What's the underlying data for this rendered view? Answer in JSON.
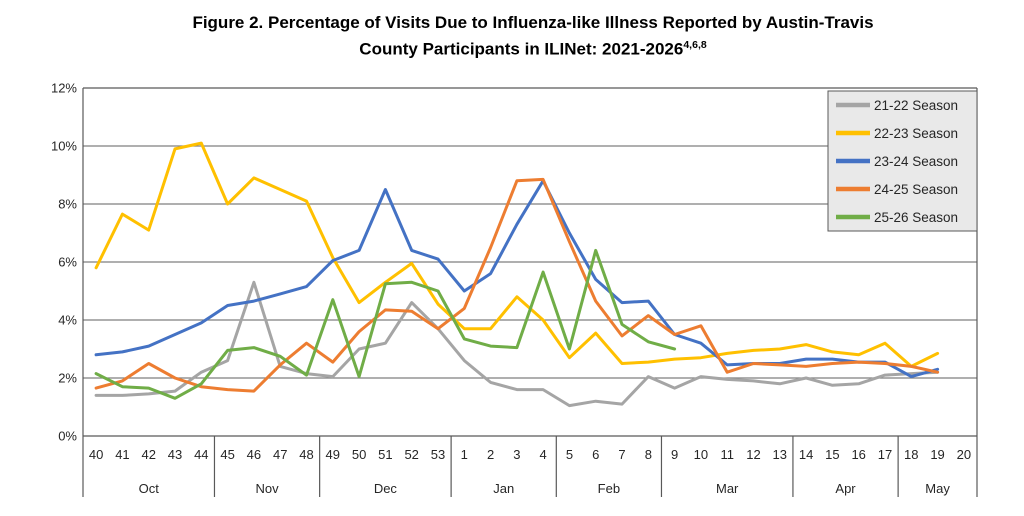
{
  "title": {
    "line1": "Figure 2. Percentage of Visits Due to Influenza-like Illness Reported by Austin-Travis",
    "line2": "County Participants in ILINet: 2021-2026",
    "superscript": "4,6,8"
  },
  "chart_data": {
    "type": "line",
    "title": "Figure 2. Percentage of Visits Due to Influenza-like Illness Reported by Austin-Travis County Participants in ILINet: 2021-2026",
    "grid": true,
    "y_axis": {
      "min": 0,
      "max": 12,
      "tick_interval": 2,
      "format": "percent",
      "tick_labels": [
        "0%",
        "2%",
        "4%",
        "6%",
        "8%",
        "10%",
        "12%"
      ]
    },
    "x_axis": {
      "weeks": [
        "40",
        "41",
        "42",
        "43",
        "44",
        "45",
        "46",
        "47",
        "48",
        "49",
        "50",
        "51",
        "52",
        "53",
        "1",
        "2",
        "3",
        "4",
        "5",
        "6",
        "7",
        "8",
        "9",
        "10",
        "11",
        "12",
        "13",
        "14",
        "15",
        "16",
        "17",
        "18",
        "19",
        "20"
      ],
      "months": [
        {
          "label": "Oct",
          "weeks_count": 5
        },
        {
          "label": "Nov",
          "weeks_count": 4
        },
        {
          "label": "Dec",
          "weeks_count": 5
        },
        {
          "label": "Jan",
          "weeks_count": 4
        },
        {
          "label": "Feb",
          "weeks_count": 4
        },
        {
          "label": "Mar",
          "weeks_count": 5
        },
        {
          "label": "Apr",
          "weeks_count": 4
        },
        {
          "label": "May",
          "weeks_count": 3
        }
      ]
    },
    "legend": {
      "position": "top-right",
      "background": "#e9e9e9",
      "border": "#595959"
    },
    "series": [
      {
        "name": "21-22 Season",
        "color": "#A5A5A5",
        "values": [
          1.4,
          1.4,
          1.45,
          1.55,
          2.2,
          2.6,
          5.3,
          2.4,
          2.15,
          2.05,
          3.0,
          3.2,
          4.6,
          3.7,
          2.6,
          1.85,
          1.6,
          1.6,
          1.05,
          1.2,
          1.1,
          2.05,
          1.65,
          2.05,
          1.95,
          1.9,
          1.8,
          2.0,
          1.75,
          1.8,
          2.1,
          2.15,
          2.2,
          null
        ]
      },
      {
        "name": "22-23 Season",
        "color": "#FFC000",
        "values": [
          5.8,
          7.65,
          7.1,
          9.9,
          10.1,
          8.0,
          8.9,
          8.5,
          8.1,
          6.15,
          4.6,
          5.3,
          5.95,
          4.55,
          3.7,
          3.7,
          4.8,
          4.0,
          2.7,
          3.55,
          2.5,
          2.55,
          2.65,
          2.7,
          2.85,
          2.95,
          3.0,
          3.15,
          2.9,
          2.8,
          3.2,
          2.4,
          2.85,
          null
        ]
      },
      {
        "name": "23-24 Season",
        "color": "#4472C4",
        "values": [
          2.8,
          2.9,
          3.1,
          3.5,
          3.9,
          4.5,
          4.65,
          4.9,
          5.15,
          6.05,
          6.4,
          8.5,
          6.4,
          6.1,
          5.0,
          5.6,
          7.3,
          8.8,
          7.0,
          5.4,
          4.6,
          4.65,
          3.5,
          3.2,
          2.45,
          2.5,
          2.5,
          2.65,
          2.65,
          2.55,
          2.55,
          2.05,
          2.3,
          null
        ]
      },
      {
        "name": "24-25 Season",
        "color": "#ED7D31",
        "values": [
          1.65,
          1.9,
          2.5,
          2.0,
          1.7,
          1.6,
          1.55,
          2.45,
          3.2,
          2.55,
          3.6,
          4.35,
          4.3,
          3.7,
          4.4,
          6.5,
          8.8,
          8.85,
          6.7,
          4.65,
          3.45,
          4.15,
          3.5,
          3.8,
          2.2,
          2.5,
          2.45,
          2.4,
          2.5,
          2.55,
          2.5,
          2.4,
          2.2,
          null
        ]
      },
      {
        "name": "25-26 Season",
        "color": "#70AD47",
        "values": [
          2.15,
          1.7,
          1.65,
          1.3,
          1.8,
          2.95,
          3.05,
          2.75,
          2.1,
          4.7,
          2.05,
          5.25,
          5.3,
          5.0,
          3.35,
          3.1,
          3.05,
          5.65,
          3.0,
          6.4,
          3.85,
          3.25,
          3.0,
          null,
          null,
          null,
          null,
          null,
          null,
          null,
          null,
          null,
          null,
          null
        ]
      }
    ]
  },
  "style": {
    "gridline_color": "#7f7f7f",
    "border_color": "#595959",
    "text_color": "#262626"
  }
}
